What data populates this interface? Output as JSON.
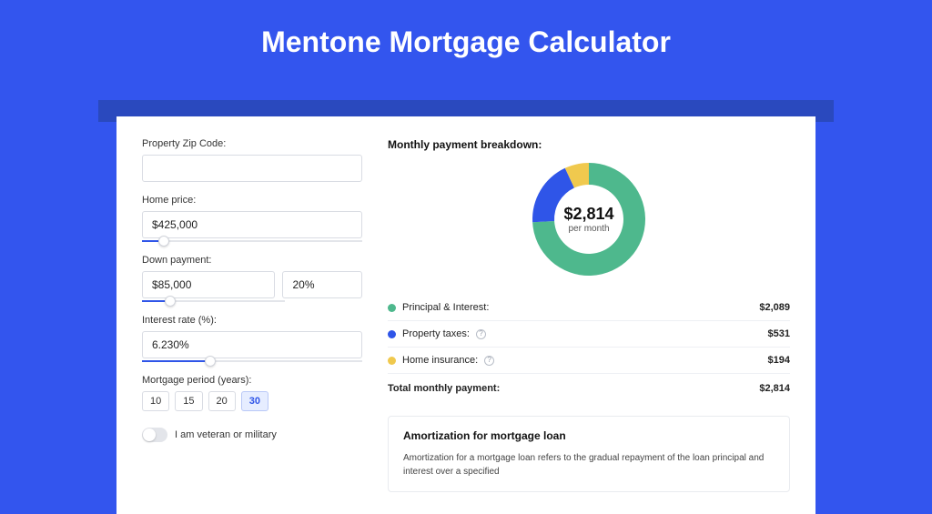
{
  "page": {
    "title": "Mentone Mortgage Calculator"
  },
  "colors": {
    "page_bg": "#3355ee",
    "header_band": "#2a49be",
    "card_bg": "#ffffff",
    "input_border": "#d9dce3",
    "slider_track": "#e3e5ea",
    "slider_fill": "#2f55e8",
    "period_active_bg": "#e6edff",
    "period_active_border": "#b9c8f7",
    "legend_border": "#eef0f4"
  },
  "form": {
    "zip": {
      "label": "Property Zip Code:",
      "value": ""
    },
    "home_price": {
      "label": "Home price:",
      "value": "$425,000",
      "slider": {
        "fill_pct": 10,
        "thumb_pct": 10
      }
    },
    "down_payment": {
      "label": "Down payment:",
      "amount": "$85,000",
      "percent": "20%",
      "slider": {
        "fill_pct": 20,
        "thumb_pct": 20,
        "track_width_pct": 65
      }
    },
    "interest_rate": {
      "label": "Interest rate (%):",
      "value": "6.230%",
      "slider": {
        "fill_pct": 31,
        "thumb_pct": 31
      }
    },
    "period": {
      "label": "Mortgage period (years):",
      "options": [
        "10",
        "15",
        "20",
        "30"
      ],
      "selected": "30"
    },
    "veteran": {
      "label": "I am veteran or military",
      "on": false
    }
  },
  "breakdown": {
    "title": "Monthly payment breakdown:",
    "donut": {
      "type": "donut",
      "amount": "$2,814",
      "sub": "per month",
      "inner_radius": 38,
      "outer_radius": 62,
      "background": "#ffffff",
      "slices": [
        {
          "label": "Principal & Interest",
          "value": 2089,
          "color": "#4eb88d",
          "start_deg": -90,
          "end_deg": 177
        },
        {
          "label": "Property taxes",
          "value": 531,
          "color": "#2f55e8",
          "start_deg": 177,
          "end_deg": 245
        },
        {
          "label": "Home insurance",
          "value": 194,
          "color": "#f0c94e",
          "start_deg": 245,
          "end_deg": 270
        }
      ]
    },
    "legend": [
      {
        "key": "pi",
        "label": "Principal & Interest:",
        "value": "$2,089",
        "color": "#4eb88d",
        "info": false
      },
      {
        "key": "tax",
        "label": "Property taxes:",
        "value": "$531",
        "color": "#2f55e8",
        "info": true
      },
      {
        "key": "ins",
        "label": "Home insurance:",
        "value": "$194",
        "color": "#f0c94e",
        "info": true
      }
    ],
    "total": {
      "label": "Total monthly payment:",
      "value": "$2,814"
    }
  },
  "amortization": {
    "title": "Amortization for mortgage loan",
    "text": "Amortization for a mortgage loan refers to the gradual repayment of the loan principal and interest over a specified"
  }
}
